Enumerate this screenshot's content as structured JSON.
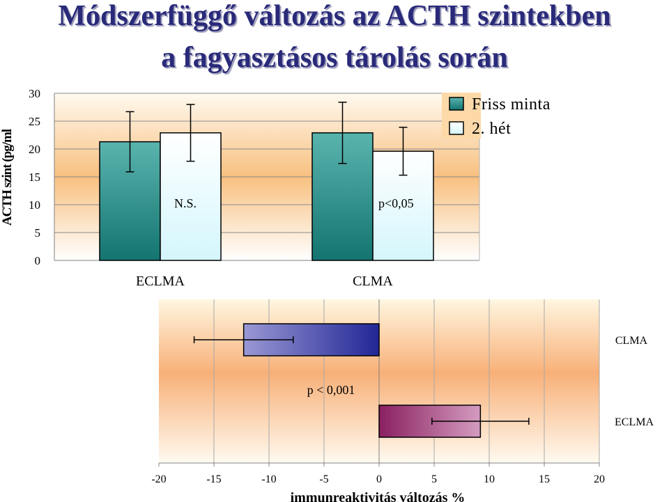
{
  "title_line1": "Módszerfüggő változás az ACTH szintekben",
  "title_line2": "a fagyasztásos tárolás során",
  "chart_data": [
    {
      "type": "bar",
      "ylabel": "ACTH szint (pg/ml",
      "ylim": [
        0,
        30
      ],
      "yticks": [
        "0",
        "5",
        "10",
        "15",
        "20",
        "25",
        "30"
      ],
      "categories": [
        "ECLMA",
        "CLMA"
      ],
      "series": [
        {
          "name": "Friss minta",
          "values": [
            21.3,
            22.9
          ],
          "errors": [
            5.4,
            5.5
          ],
          "color": "#1a7a78"
        },
        {
          "name": "2. hét",
          "values": [
            22.9,
            19.6
          ],
          "errors": [
            5.1,
            4.3
          ],
          "color": "#e0f8fc"
        }
      ],
      "annotations": [
        "N.S.",
        "p<0,05"
      ],
      "legend_position": "right",
      "grid": true
    },
    {
      "type": "bar",
      "orientation": "horizontal",
      "xlabel": "immunreaktivitás változás %",
      "xlim": [
        -20,
        20
      ],
      "xticks": [
        "-20",
        "-15",
        "-10",
        "-5",
        "0",
        "5",
        "10",
        "15",
        "20"
      ],
      "categories": [
        "CLMA",
        "ECLMA"
      ],
      "values": [
        -12.3,
        9.2
      ],
      "errors": [
        4.5,
        4.4
      ],
      "colors": [
        "#2a2a90",
        "#8a2a60"
      ],
      "annotations": [
        "p < 0,001"
      ],
      "grid": true
    }
  ]
}
